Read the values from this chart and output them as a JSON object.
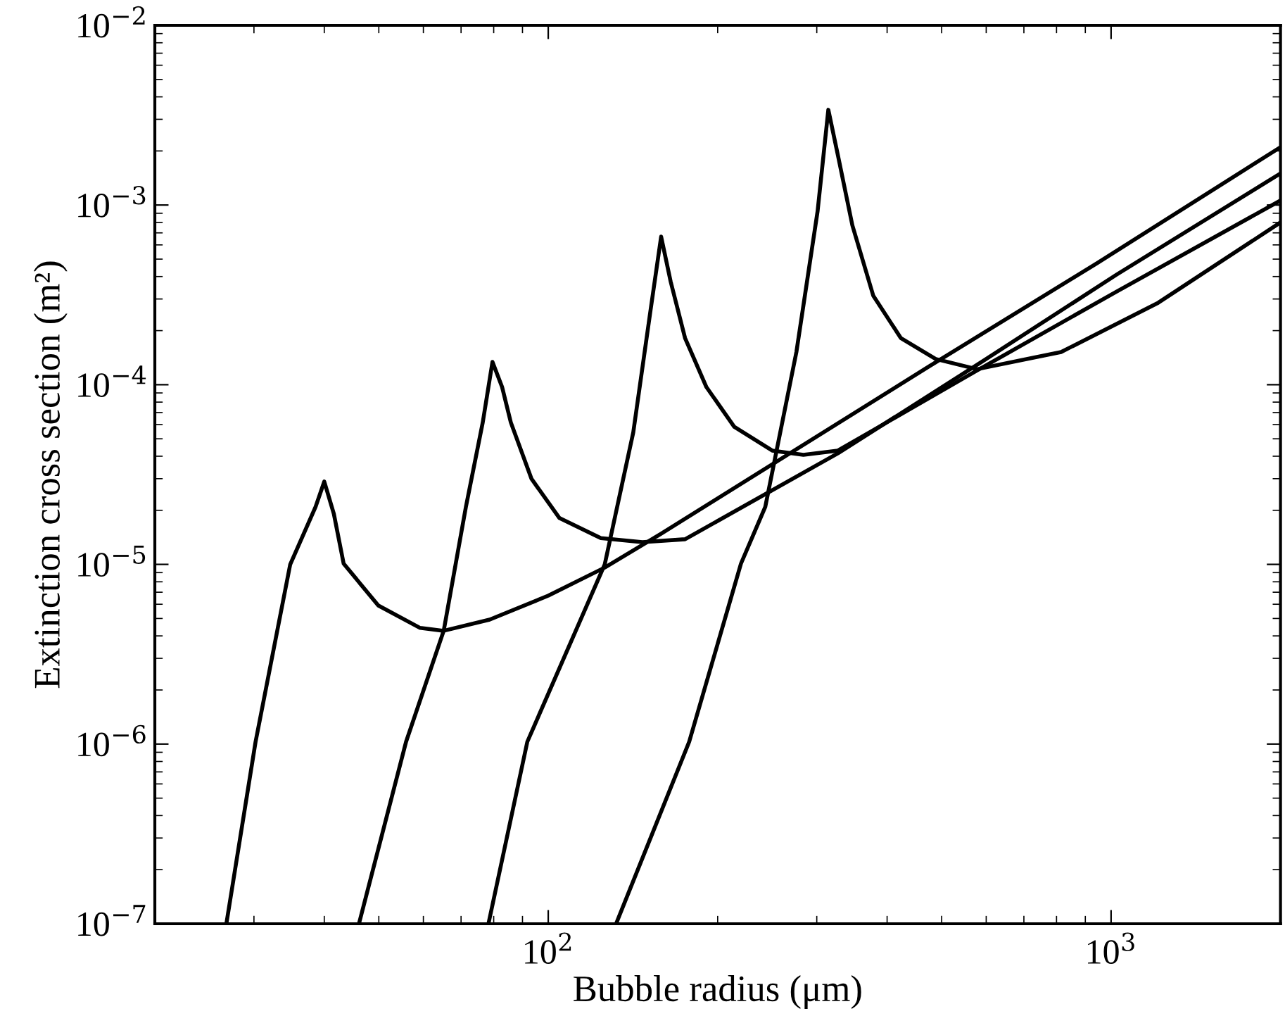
{
  "chart_data": {
    "type": "line",
    "xlabel": "Bubble radius (μm)",
    "ylabel": "Extinction cross section (m²)",
    "log": "xy",
    "grid": false,
    "legend": false,
    "marker": "none",
    "line_style": "solid",
    "xlim": [
      20,
      2000
    ],
    "ylim": [
      1e-07,
      0.01
    ],
    "xticks": [
      {
        "value": 100,
        "label": "10$^{2}$"
      },
      {
        "value": 1000,
        "label": "10$^{3}$"
      }
    ],
    "yticks": [
      {
        "value": 1e-07,
        "label": "10$^{−7}$"
      },
      {
        "value": 1e-06,
        "label": "10$^{−6}$"
      },
      {
        "value": 1e-05,
        "label": "10$^{−5}$"
      },
      {
        "value": 0.0001,
        "label": "10$^{−4}$"
      },
      {
        "value": 0.001,
        "label": "10$^{−3}$"
      },
      {
        "value": 0.01,
        "label": "10$^{−2}$"
      }
    ],
    "series": [
      {
        "color": "#000000",
        "x": [
          26.8,
          30.2,
          34.8,
          38.6,
          40.0,
          41.6,
          43.3,
          49.9,
          59.2,
          65.2,
          78.7,
          100,
          126,
          158.6,
          476,
          944,
          2000
        ],
        "values": [
          1e-07,
          1.03e-06,
          1e-05,
          2.09e-05,
          2.89e-05,
          1.91e-05,
          1.01e-05,
          5.9e-06,
          4.43e-06,
          4.27e-06,
          4.93e-06,
          6.7e-06,
          9.6e-06,
          1.48e-05,
          0.000127,
          0.000474,
          0.0021
        ]
      },
      {
        "color": "#000000",
        "x": [
          46.1,
          55.9,
          65.2,
          71.4,
          76.5,
          79.6,
          82.8,
          85.8,
          93.4,
          104.7,
          124,
          147,
          175,
          327,
          578,
          1023,
          2000
        ],
        "values": [
          1e-07,
          1.03e-06,
          4.27e-06,
          2.09e-05,
          6.17e-05,
          0.000134,
          9.7e-05,
          6.17e-05,
          2.99e-05,
          1.81e-05,
          1.4e-05,
          1.33e-05,
          1.38e-05,
          4.15e-05,
          0.000129,
          0.00041,
          0.0015
        ]
      },
      {
        "color": "#000000",
        "x": [
          78.3,
          91.8,
          126,
          141.6,
          152,
          158.7,
          165,
          175,
          191,
          214,
          250,
          284,
          327,
          578,
          1023,
          2000
        ],
        "values": [
          1e-07,
          1.03e-06,
          1e-05,
          5.43e-05,
          0.000261,
          0.000667,
          0.000375,
          0.000182,
          9.7e-05,
          5.83e-05,
          4.3e-05,
          4.07e-05,
          4.3e-05,
          0.00012,
          0.00033,
          0.00106
        ]
      },
      {
        "color": "#000000",
        "x": [
          132,
          178,
          220,
          243,
          276,
          301,
          314.5,
          327,
          347,
          378,
          423,
          488,
          578,
          815,
          1213,
          2000
        ],
        "values": [
          1e-07,
          1.03e-06,
          1.01e-05,
          2.09e-05,
          0.000152,
          0.000924,
          0.00339,
          0.0019,
          0.000771,
          0.000313,
          0.000182,
          0.000139,
          0.000122,
          0.000152,
          0.000286,
          0.0008
        ]
      }
    ]
  }
}
